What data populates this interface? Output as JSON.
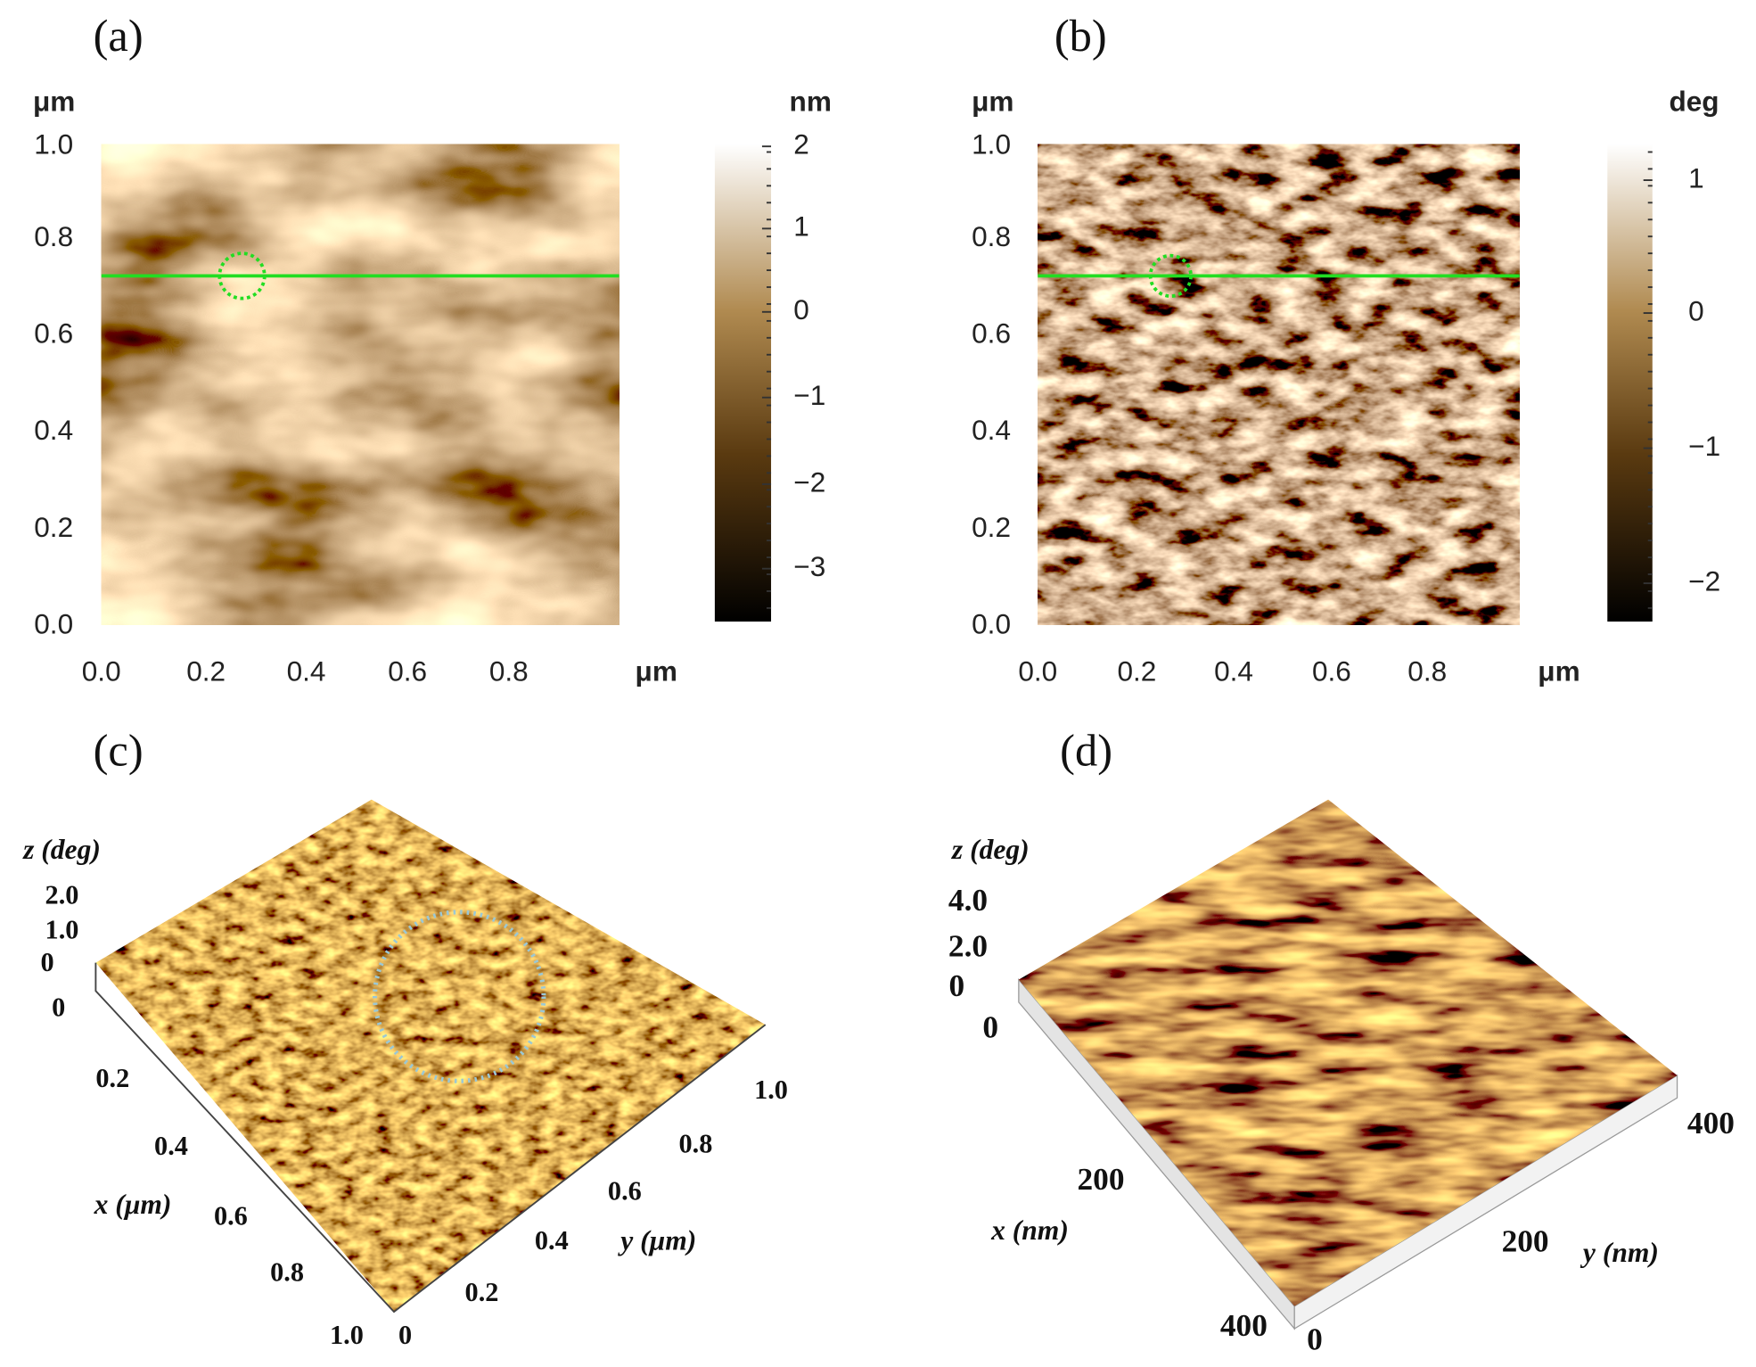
{
  "panels": [
    {
      "label": "(a)",
      "y_unit": "μm",
      "x_unit": "μm",
      "colorbar_unit": "nm",
      "y_ticks": [
        "1.0",
        "0.8",
        "0.6",
        "0.4",
        "0.2",
        "0.0"
      ],
      "x_ticks": [
        "0.0",
        "0.2",
        "0.4",
        "0.6",
        "0.8"
      ],
      "colorbar_ticks": [
        "2",
        "1",
        "0",
        "−1",
        "−2",
        "−3"
      ]
    },
    {
      "label": "(b)",
      "y_unit": "μm",
      "x_unit": "μm",
      "colorbar_unit": "deg",
      "y_ticks": [
        "1.0",
        "0.8",
        "0.6",
        "0.4",
        "0.2",
        "0.0"
      ],
      "x_ticks": [
        "0.0",
        "0.2",
        "0.4",
        "0.6",
        "0.8"
      ],
      "colorbar_ticks": [
        "1",
        "0",
        "−1",
        "−2"
      ]
    },
    {
      "label": "(c)",
      "z_label": "z (deg)",
      "z_ticks": [
        "2.0",
        "1.0",
        "0"
      ],
      "x_label": "x (μm)",
      "x_ticks": [
        "0",
        "0.2",
        "0.4",
        "0.6",
        "0.8",
        "1.0"
      ],
      "y_label": "y (μm)",
      "y_ticks": [
        "0",
        "0.2",
        "0.4",
        "0.6",
        "0.8",
        "1.0"
      ]
    },
    {
      "label": "(d)",
      "z_label": "z (deg)",
      "z_ticks": [
        "4.0",
        "2.0",
        "0"
      ],
      "x_label": "x (nm)",
      "x_ticks": [
        "0",
        "200",
        "400"
      ],
      "y_label": "y (nm)",
      "y_ticks": [
        "0",
        "200",
        "400"
      ]
    }
  ]
}
